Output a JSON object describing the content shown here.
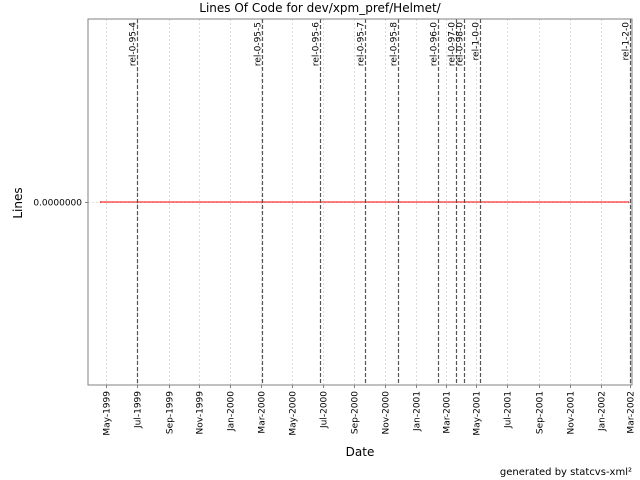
{
  "chart_data": {
    "type": "line",
    "title": "Lines Of Code for dev/xpm_pref/Helmet/",
    "xlabel": "Date",
    "ylabel": "Lines",
    "x_ticks": [
      {
        "date": "1999-05-01",
        "label": "May-1999"
      },
      {
        "date": "1999-07-01",
        "label": "Jul-1999"
      },
      {
        "date": "1999-09-01",
        "label": "Sep-1999"
      },
      {
        "date": "1999-11-01",
        "label": "Nov-1999"
      },
      {
        "date": "2000-01-01",
        "label": "Jan-2000"
      },
      {
        "date": "2000-03-01",
        "label": "Mar-2000"
      },
      {
        "date": "2000-05-01",
        "label": "May-2000"
      },
      {
        "date": "2000-07-01",
        "label": "Jul-2000"
      },
      {
        "date": "2000-09-01",
        "label": "Sep-2000"
      },
      {
        "date": "2000-11-01",
        "label": "Nov-2000"
      },
      {
        "date": "2001-01-01",
        "label": "Jan-2001"
      },
      {
        "date": "2001-03-01",
        "label": "Mar-2001"
      },
      {
        "date": "2001-05-01",
        "label": "May-2001"
      },
      {
        "date": "2001-07-01",
        "label": "Jul-2001"
      },
      {
        "date": "2001-09-01",
        "label": "Sep-2001"
      },
      {
        "date": "2001-11-01",
        "label": "Nov-2001"
      },
      {
        "date": "2002-01-01",
        "label": "Jan-2002"
      },
      {
        "date": "2002-03-01",
        "label": "Mar-2002"
      }
    ],
    "y_ticks": [
      {
        "value": 0,
        "label": "0.0000000"
      }
    ],
    "xlim": [
      "1999-03-26",
      "2002-03-04"
    ],
    "ylim": [
      -1,
      1
    ],
    "grid": true,
    "series": [
      {
        "color": "#ff0000",
        "points": [
          {
            "x": "1999-04-20",
            "y": 0
          },
          {
            "x": "2002-02-25",
            "y": 0
          }
        ]
      }
    ],
    "markers": [
      {
        "date": "1999-07-01",
        "label": "rel-0-95-4"
      },
      {
        "date": "2000-03-03",
        "label": "rel-0-95-5"
      },
      {
        "date": "2000-06-26",
        "label": "rel-0-95-6"
      },
      {
        "date": "2000-09-22",
        "label": "rel-0-95-7"
      },
      {
        "date": "2000-11-27",
        "label": "rel-0-95-8"
      },
      {
        "date": "2001-02-14",
        "label": "rel-0-96-0"
      },
      {
        "date": "2001-03-21",
        "label": "rel-0-97-0"
      },
      {
        "date": "2001-04-06",
        "label": "rel-0-98-0"
      },
      {
        "date": "2001-05-08",
        "label": "rel-1-0-0"
      },
      {
        "date": "2002-02-28",
        "label": "rel-1-2-0"
      }
    ],
    "colors": {
      "series": "#ff0000",
      "marker_line": "#555555",
      "grid": "#dddddd",
      "axis": "#808080"
    }
  },
  "footer": {
    "credit": "generated by statcvs-xml²"
  }
}
